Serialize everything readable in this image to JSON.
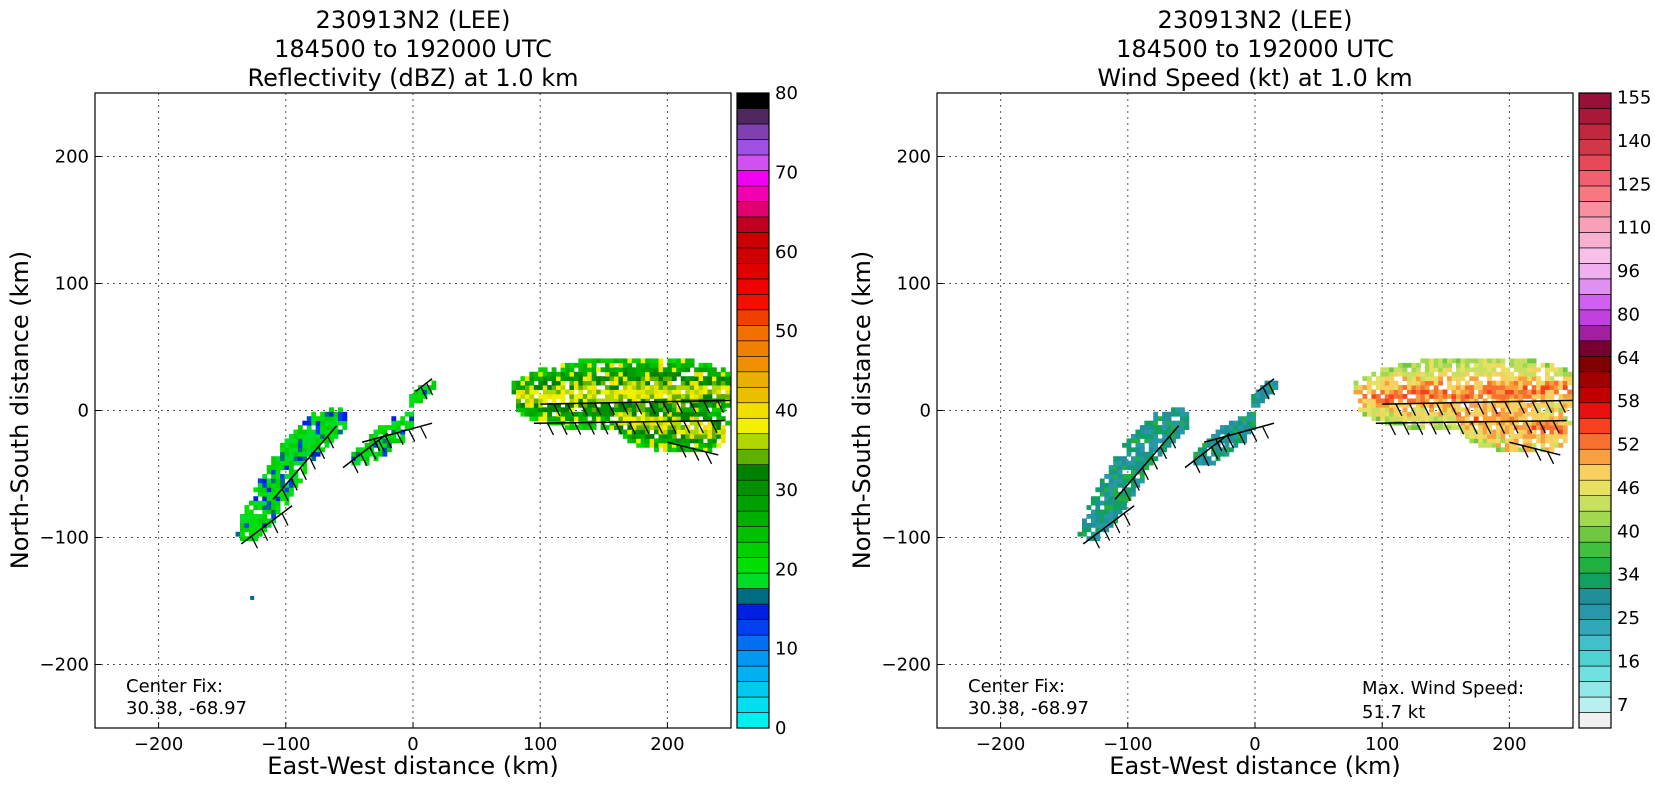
{
  "chart_data": [
    {
      "type": "heatmap",
      "title_lines": [
        "230913N2 (LEE)",
        "184500 to 192000 UTC",
        "Reflectivity (dBZ) at 1.0 km"
      ],
      "xlabel": "East-West distance (km)",
      "ylabel": "North-South distance (km)",
      "xlim": [
        -250,
        250
      ],
      "ylim": [
        -250,
        250
      ],
      "xticks": [
        -200,
        -100,
        0,
        100,
        200
      ],
      "yticks": [
        -200,
        -100,
        0,
        100,
        200
      ],
      "grid": true,
      "annotations": [
        "Center Fix:",
        "30.38, -68.97"
      ],
      "colorbar": {
        "label": "dBZ",
        "min": 0,
        "max": 80,
        "ticks": [
          0,
          10,
          20,
          30,
          40,
          50,
          60,
          70,
          80
        ],
        "colors": [
          "#00efef",
          "#00dfef",
          "#00c8f0",
          "#00b0f0",
          "#0098f0",
          "#0070f0",
          "#0040f0",
          "#0020e0",
          "#006c82",
          "#00dc28",
          "#00e000",
          "#00d000",
          "#00c000",
          "#00b000",
          "#00a000",
          "#009000",
          "#008000",
          "#60b000",
          "#b0d800",
          "#f0f000",
          "#f0e000",
          "#e8c000",
          "#e8b000",
          "#f09000",
          "#f08000",
          "#f07000",
          "#f04000",
          "#f01000",
          "#f00000",
          "#e00000",
          "#d00000",
          "#c80000",
          "#c00020",
          "#e00070",
          "#f000b0",
          "#f000f0",
          "#d050f0",
          "#a050e0",
          "#8040b0",
          "#502860",
          "#000000"
        ]
      },
      "data_regions": [
        {
          "name": "inner-band-sw",
          "x_range": [
            -140,
            -60
          ],
          "y_range": [
            -110,
            0
          ],
          "dbz_range": [
            10,
            25
          ]
        },
        {
          "name": "inner-band-center",
          "x_range": [
            -50,
            15
          ],
          "y_range": [
            -50,
            25
          ],
          "dbz_range": [
            15,
            25
          ]
        },
        {
          "name": "outer-band-east",
          "x_range": [
            75,
            250
          ],
          "y_range": [
            -40,
            40
          ],
          "dbz_range": [
            20,
            38
          ]
        },
        {
          "name": "isolated-echo",
          "x_range": [
            -128,
            -126
          ],
          "y_range": [
            -149,
            -147
          ],
          "dbz_range": [
            15,
            18
          ]
        }
      ]
    },
    {
      "type": "heatmap",
      "title_lines": [
        "230913N2 (LEE)",
        "184500 to 192000 UTC",
        "Wind Speed (kt) at 1.0 km"
      ],
      "xlabel": "East-West distance (km)",
      "ylabel": "North-South distance (km)",
      "xlim": [
        -250,
        250
      ],
      "ylim": [
        -250,
        250
      ],
      "xticks": [
        -200,
        -100,
        0,
        100,
        200
      ],
      "yticks": [
        -200,
        -100,
        0,
        100,
        200
      ],
      "grid": true,
      "annotations": [
        "Center Fix:",
        "30.38, -68.97"
      ],
      "max_wind_lines": [
        "Max. Wind Speed:",
        "51.7 kt"
      ],
      "colorbar": {
        "label": "kt",
        "tick_labels": [
          "7",
          "16",
          "25",
          "34",
          "40",
          "46",
          "52",
          "58",
          "64",
          "80",
          "96",
          "110",
          "125",
          "140",
          "155"
        ],
        "colors": [
          "#f0f0f0",
          "#b8f0f0",
          "#90e8e8",
          "#70e0e0",
          "#50d0d0",
          "#40c0c8",
          "#30a8b8",
          "#2898a8",
          "#209098",
          "#10a060",
          "#20b040",
          "#40c040",
          "#70c840",
          "#a0d850",
          "#c8e060",
          "#e8e060",
          "#f8d060",
          "#f8a040",
          "#f87030",
          "#f84020",
          "#e81010",
          "#c00000",
          "#a00000",
          "#800000",
          "#780030",
          "#a020a0",
          "#c040e0",
          "#d060f0",
          "#e090f0",
          "#f0b0f0",
          "#f8c0e8",
          "#f8b0d0",
          "#f8a0b8",
          "#f890a0",
          "#f87880",
          "#f06070",
          "#e84858",
          "#d03848",
          "#c02840",
          "#a81838",
          "#981038"
        ]
      },
      "data_regions": [
        {
          "name": "inner-band-sw",
          "x_range": [
            -140,
            -60
          ],
          "y_range": [
            -110,
            0
          ],
          "kt_range": [
            16,
            34
          ]
        },
        {
          "name": "inner-band-center",
          "x_range": [
            -50,
            15
          ],
          "y_range": [
            -50,
            25
          ],
          "kt_range": [
            20,
            30
          ]
        },
        {
          "name": "outer-band-east",
          "x_range": [
            75,
            250
          ],
          "y_range": [
            -40,
            40
          ],
          "kt_range": [
            34,
            52
          ]
        }
      ]
    }
  ]
}
